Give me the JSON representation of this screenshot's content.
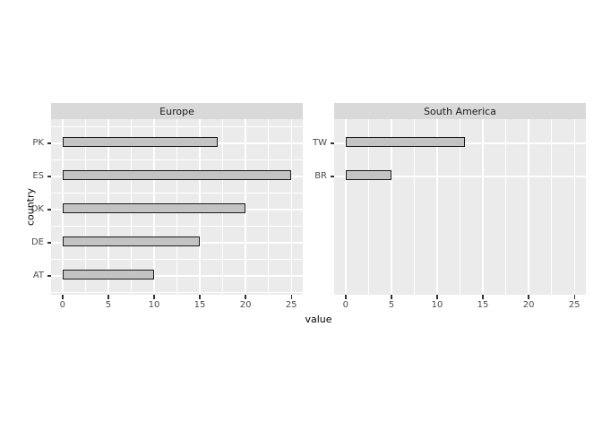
{
  "chart_data": {
    "type": "bar",
    "orientation": "horizontal",
    "xlabel": "value",
    "ylabel": "country",
    "x_axis": {
      "ticks": [
        0,
        5,
        10,
        15,
        20,
        25
      ],
      "minor_ticks": [
        2.5,
        7.5,
        12.5,
        17.5,
        22.5
      ],
      "lim": [
        -1.25,
        26.25
      ]
    },
    "row_slots": 5,
    "facets": [
      {
        "label": "Europe",
        "categories": [
          "PK",
          "ES",
          "DK",
          "DE",
          "AT"
        ],
        "values": [
          17,
          25,
          20,
          15,
          10
        ],
        "minor_hlines": true
      },
      {
        "label": "South America",
        "categories": [
          "TW",
          "BR"
        ],
        "values": [
          13,
          5
        ],
        "minor_hlines": false
      }
    ],
    "legend": "none",
    "grid": "on",
    "colors": {
      "panel_bg": "#ebebeb",
      "strip_bg": "#d9d9d9",
      "grid_line": "#ffffff",
      "bar_fill": "#c3c3c3",
      "bar_border": "#1a1a1a",
      "tick_label": "#4d4d4d",
      "axis_title": "#000000",
      "tick_mark": "#333333"
    }
  }
}
